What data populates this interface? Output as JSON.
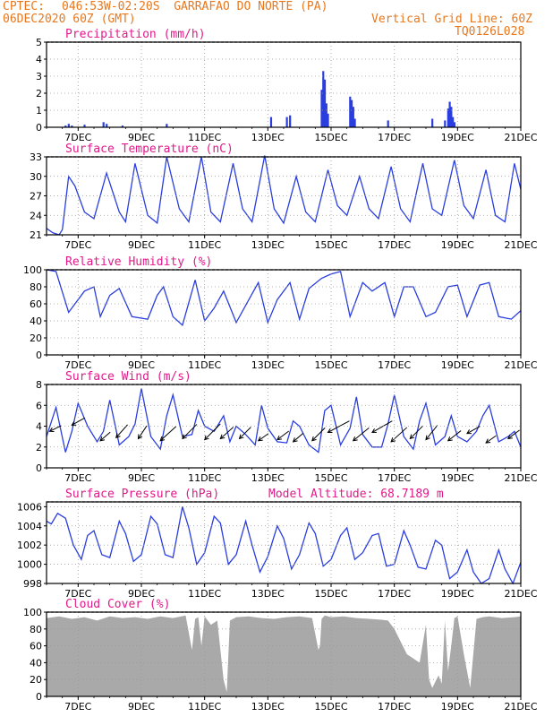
{
  "header": {
    "source": "CPTEC:",
    "location": "046:53W-02:20S  GARRAFAO DO NORTE (PA)",
    "run": "06DEC2020 60Z (GMT)",
    "grid_note": "Vertical Grid Line: 60Z",
    "code": "TQ0126L028"
  },
  "colors": {
    "header": "#e8781e",
    "title": "#e21a8a",
    "series": "#2a3ee0",
    "cloud": "#a9a9a9",
    "grid": "#9a9a9a"
  },
  "x_axis": {
    "start_day": 6,
    "end_day": 21,
    "tick_labels": [
      "7DEC",
      "9DEC",
      "11DEC",
      "13DEC",
      "15DEC",
      "17DEC",
      "19DEC",
      "21DEC"
    ],
    "tick_days": [
      7,
      9,
      11,
      13,
      15,
      17,
      19,
      21
    ]
  },
  "chart_data": [
    {
      "type": "bar",
      "title": "Precipitation (mm/h)",
      "ylim": [
        0,
        5
      ],
      "yticks": [
        0,
        1,
        2,
        3,
        4,
        5
      ],
      "x": [
        6.6,
        6.7,
        6.8,
        7.2,
        7.8,
        7.9,
        8.4,
        9.8,
        13.1,
        13.6,
        13.7,
        14.7,
        14.75,
        14.8,
        14.85,
        14.9,
        15.6,
        15.65,
        15.7,
        15.75,
        16.8,
        18.2,
        18.6,
        18.7,
        18.75,
        18.8,
        18.85,
        18.9
      ],
      "values": [
        0.1,
        0.2,
        0.1,
        0.15,
        0.3,
        0.2,
        0.1,
        0.2,
        0.6,
        0.6,
        0.7,
        2.2,
        3.3,
        2.8,
        1.4,
        0.8,
        1.8,
        1.6,
        1.2,
        0.5,
        0.4,
        0.5,
        0.4,
        1.1,
        1.5,
        1.2,
        0.6,
        0.3
      ]
    },
    {
      "type": "line",
      "title": "Surface Temperature (nC)",
      "ylim": [
        21,
        33
      ],
      "yticks": [
        21,
        24,
        27,
        30,
        33
      ],
      "x": [
        6.0,
        6.2,
        6.4,
        6.5,
        6.7,
        6.9,
        7.2,
        7.5,
        7.9,
        8.3,
        8.5,
        8.8,
        9.2,
        9.5,
        9.8,
        10.2,
        10.5,
        10.9,
        11.2,
        11.5,
        11.9,
        12.2,
        12.5,
        12.9,
        13.2,
        13.5,
        13.9,
        14.2,
        14.5,
        14.9,
        15.2,
        15.5,
        15.9,
        16.2,
        16.5,
        16.9,
        17.2,
        17.5,
        17.9,
        18.2,
        18.5,
        18.9,
        19.2,
        19.5,
        19.9,
        20.2,
        20.5,
        20.8,
        21.0
      ],
      "values": [
        22.0,
        21.3,
        21.0,
        21.8,
        30.0,
        28.5,
        24.5,
        23.5,
        30.5,
        24.5,
        23.0,
        32.0,
        24.0,
        22.8,
        33.0,
        25.0,
        23.0,
        33.0,
        24.5,
        23.0,
        32.0,
        25.0,
        23.0,
        33.2,
        25.0,
        22.8,
        30.0,
        24.5,
        23.0,
        31.0,
        25.5,
        24.0,
        30.0,
        25.0,
        23.5,
        31.5,
        25.0,
        23.0,
        32.0,
        25.0,
        24.0,
        32.5,
        25.5,
        23.5,
        31.0,
        24.0,
        23.0,
        32.0,
        28.0
      ]
    },
    {
      "type": "line",
      "title": "Relative Humidity (%)",
      "ylim": [
        0,
        100
      ],
      "yticks": [
        0,
        20,
        40,
        60,
        80,
        100
      ],
      "x": [
        6.0,
        6.3,
        6.7,
        7.2,
        7.5,
        7.7,
        8.0,
        8.3,
        8.7,
        9.2,
        9.5,
        9.7,
        10.0,
        10.3,
        10.7,
        11.0,
        11.3,
        11.6,
        12.0,
        12.4,
        12.7,
        13.0,
        13.3,
        13.7,
        14.0,
        14.3,
        14.7,
        15.0,
        15.3,
        15.6,
        16.0,
        16.3,
        16.7,
        17.0,
        17.3,
        17.6,
        18.0,
        18.3,
        18.7,
        19.0,
        19.3,
        19.7,
        20.0,
        20.3,
        20.7,
        21.0
      ],
      "values": [
        100,
        98,
        50,
        75,
        80,
        45,
        70,
        78,
        45,
        42,
        70,
        80,
        45,
        35,
        88,
        40,
        55,
        75,
        38,
        65,
        85,
        38,
        65,
        85,
        42,
        78,
        90,
        95,
        98,
        45,
        85,
        75,
        85,
        45,
        80,
        80,
        45,
        50,
        80,
        82,
        45,
        82,
        85,
        45,
        42,
        52
      ]
    },
    {
      "type": "line",
      "title": "Surface Wind (m/s)",
      "ylim": [
        0,
        8
      ],
      "yticks": [
        0,
        2,
        4,
        6,
        8
      ],
      "x": [
        6.0,
        6.3,
        6.6,
        6.8,
        7.0,
        7.3,
        7.6,
        7.8,
        8.0,
        8.3,
        8.6,
        8.8,
        9.0,
        9.3,
        9.6,
        9.8,
        10.0,
        10.3,
        10.6,
        10.8,
        11.0,
        11.3,
        11.6,
        11.8,
        12.0,
        12.3,
        12.6,
        12.8,
        13.0,
        13.3,
        13.6,
        13.8,
        14.0,
        14.3,
        14.6,
        14.8,
        15.0,
        15.3,
        15.6,
        15.8,
        16.0,
        16.3,
        16.6,
        16.8,
        17.0,
        17.3,
        17.6,
        17.8,
        18.0,
        18.3,
        18.6,
        18.8,
        19.0,
        19.3,
        19.6,
        19.8,
        20.0,
        20.3,
        20.6,
        20.8,
        21.0
      ],
      "values": [
        3.0,
        5.8,
        1.5,
        3.5,
        6.2,
        4.0,
        2.5,
        3.5,
        6.5,
        2.2,
        3.0,
        4.2,
        7.6,
        3.0,
        1.8,
        5.0,
        7.0,
        3.0,
        3.2,
        5.5,
        4.0,
        3.5,
        5.0,
        2.5,
        4.0,
        3.2,
        2.2,
        6.0,
        3.8,
        2.5,
        2.4,
        4.5,
        4.0,
        2.2,
        1.5,
        5.5,
        6.0,
        2.2,
        3.8,
        6.8,
        3.2,
        2.0,
        2.0,
        4.2,
        7.0,
        3.0,
        1.8,
        4.5,
        6.2,
        2.2,
        3.0,
        5.0,
        3.0,
        2.5,
        3.5,
        5.0,
        6.0,
        2.5,
        3.0,
        3.5,
        2.0
      ],
      "arrows": {
        "x": [
          6.1,
          6.8,
          7.7,
          8.2,
          8.9,
          9.6,
          10.3,
          11.0,
          11.5,
          12.1,
          12.7,
          13.3,
          13.8,
          14.4,
          14.9,
          15.7,
          16.3,
          16.9,
          17.5,
          18.0,
          18.7,
          19.3,
          19.9,
          20.6
        ],
        "y": [
          3.5,
          4.1,
          2.6,
          2.9,
          2.8,
          2.6,
          2.8,
          2.7,
          2.8,
          2.8,
          2.6,
          2.7,
          2.5,
          2.6,
          3.4,
          2.6,
          3.4,
          2.5,
          2.8,
          2.7,
          2.6,
          3.3,
          2.4,
          2.8
        ],
        "u": [
          0.8,
          0.9,
          0.7,
          0.8,
          0.6,
          1.1,
          1.0,
          1.1,
          0.9,
          0.8,
          0.7,
          0.8,
          0.7,
          0.9,
          1.5,
          1.1,
          1.4,
          1.1,
          0.9,
          0.8,
          0.9,
          0.9,
          0.7,
          0.8
        ],
        "v": [
          0.4,
          0.5,
          0.6,
          0.9,
          0.9,
          1.0,
          1.0,
          1.1,
          0.8,
          0.8,
          0.5,
          0.6,
          0.6,
          0.9,
          0.8,
          0.9,
          0.8,
          1.0,
          0.9,
          1.0,
          0.7,
          0.5,
          0.5,
          0.6
        ]
      }
    },
    {
      "type": "line",
      "title": "Surface Pressure (hPa)",
      "subtitle": "Model Altitude: 68.7189 m",
      "ylim": [
        998,
        1006.5
      ],
      "yticks": [
        998,
        1000,
        1002,
        1004,
        1006
      ],
      "x": [
        6.0,
        6.15,
        6.35,
        6.6,
        6.85,
        7.1,
        7.3,
        7.5,
        7.75,
        8.0,
        8.3,
        8.5,
        8.75,
        9.0,
        9.3,
        9.5,
        9.75,
        10.0,
        10.3,
        10.5,
        10.75,
        11.0,
        11.3,
        11.5,
        11.75,
        12.0,
        12.3,
        12.5,
        12.75,
        13.0,
        13.3,
        13.5,
        13.75,
        14.0,
        14.3,
        14.5,
        14.75,
        15.0,
        15.3,
        15.5,
        15.75,
        16.0,
        16.3,
        16.5,
        16.75,
        17.0,
        17.3,
        17.5,
        17.75,
        18.0,
        18.3,
        18.5,
        18.75,
        19.0,
        19.3,
        19.5,
        19.75,
        20.0,
        20.3,
        20.5,
        20.75,
        21.0
      ],
      "values": [
        1004.5,
        1004.2,
        1005.3,
        1004.8,
        1002.0,
        1000.5,
        1003.0,
        1003.5,
        1001.0,
        1000.7,
        1004.5,
        1003.2,
        1000.3,
        1001.0,
        1005.0,
        1004.2,
        1001.0,
        1000.7,
        1006.0,
        1003.8,
        1000.0,
        1001.2,
        1005.0,
        1004.3,
        1000.0,
        1001.0,
        1004.5,
        1002.0,
        999.2,
        1000.8,
        1004.0,
        1002.7,
        999.5,
        1001.0,
        1004.3,
        1003.2,
        999.8,
        1000.5,
        1003.0,
        1003.8,
        1000.5,
        1001.2,
        1003.0,
        1003.2,
        999.8,
        1000.0,
        1003.5,
        1002.0,
        999.7,
        999.5,
        1002.5,
        1002.0,
        998.5,
        999.2,
        1001.5,
        999.2,
        998.0,
        998.5,
        1001.5,
        999.5,
        998.0,
        1000.2
      ]
    },
    {
      "type": "area",
      "title": "Cloud Cover (%)",
      "ylim": [
        0,
        100
      ],
      "yticks": [
        0,
        20,
        40,
        60,
        80,
        100
      ],
      "x": [
        6.0,
        6.4,
        6.8,
        7.2,
        7.6,
        8.0,
        8.4,
        8.8,
        9.2,
        9.6,
        10.0,
        10.4,
        10.6,
        10.7,
        10.8,
        10.9,
        11.0,
        11.2,
        11.4,
        11.6,
        11.7,
        11.8,
        11.9,
        12.0,
        12.4,
        12.8,
        13.2,
        13.6,
        14.0,
        14.4,
        14.6,
        14.65,
        14.7,
        14.8,
        15.0,
        15.4,
        15.8,
        16.2,
        16.6,
        16.8,
        17.0,
        17.4,
        17.8,
        18.0,
        18.1,
        18.2,
        18.4,
        18.5,
        18.6,
        18.7,
        18.8,
        18.9,
        19.0,
        19.2,
        19.4,
        19.6,
        19.8,
        20.0,
        20.4,
        20.8,
        21.0
      ],
      "values": [
        93,
        95,
        92,
        94,
        90,
        95,
        93,
        94,
        92,
        95,
        93,
        96,
        55,
        92,
        94,
        60,
        95,
        85,
        90,
        20,
        5,
        90,
        92,
        94,
        95,
        93,
        92,
        94,
        95,
        93,
        55,
        60,
        92,
        96,
        94,
        95,
        93,
        92,
        91,
        90,
        80,
        50,
        40,
        85,
        20,
        10,
        25,
        15,
        90,
        30,
        60,
        93,
        95,
        50,
        10,
        92,
        94,
        95,
        93,
        94,
        95
      ]
    }
  ]
}
